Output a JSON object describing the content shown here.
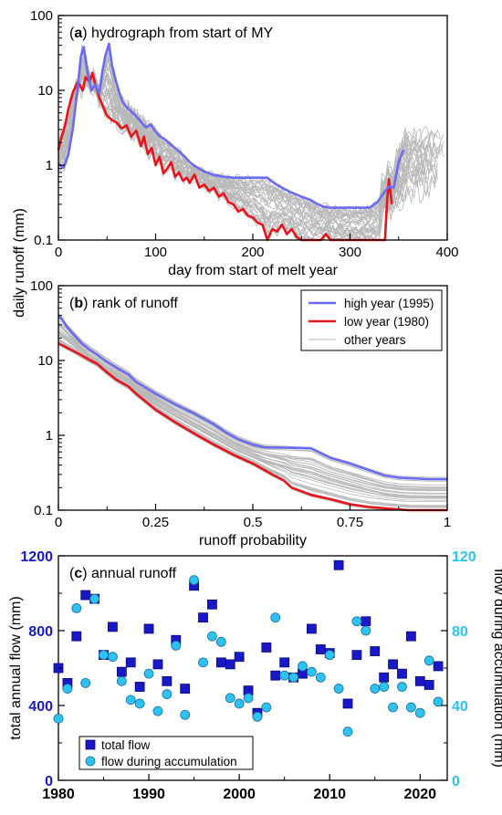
{
  "chart_data": [
    {
      "type": "line",
      "panel_letter": "a",
      "title": "hydrograph from start of MY",
      "xlabel": "day from start of melt year",
      "ylabel": "daily runoff (mm)",
      "xlim": [
        0,
        400
      ],
      "ylim": [
        0.1,
        100
      ],
      "yscale": "log",
      "xticks": [
        0,
        100,
        200,
        300,
        400
      ],
      "yticks": [
        0.1,
        1,
        10,
        100
      ],
      "series": [
        {
          "name": "high year (1995)",
          "color": "#6b6bf2",
          "points": [
            [
              0,
              1.05
            ],
            [
              5,
              0.92
            ],
            [
              10,
              1.35
            ],
            [
              15,
              3.2
            ],
            [
              18,
              7
            ],
            [
              20,
              11
            ],
            [
              23,
              28
            ],
            [
              26,
              38
            ],
            [
              30,
              17
            ],
            [
              34,
              10
            ],
            [
              38,
              12
            ],
            [
              42,
              9
            ],
            [
              45,
              17
            ],
            [
              48,
              28
            ],
            [
              52,
              42
            ],
            [
              55,
              22
            ],
            [
              58,
              15
            ],
            [
              62,
              10
            ],
            [
              66,
              7
            ],
            [
              70,
              6
            ],
            [
              75,
              5.2
            ],
            [
              80,
              4.5
            ],
            [
              85,
              3.8
            ],
            [
              90,
              3.2
            ],
            [
              95,
              3.5
            ],
            [
              100,
              2.8
            ],
            [
              105,
              2.4
            ],
            [
              110,
              2.2
            ],
            [
              115,
              1.9
            ],
            [
              120,
              1.7
            ],
            [
              125,
              1.5
            ],
            [
              130,
              1.3
            ],
            [
              135,
              1.1
            ],
            [
              140,
              0.98
            ],
            [
              145,
              0.9
            ],
            [
              150,
              0.82
            ],
            [
              155,
              0.78
            ],
            [
              160,
              0.74
            ],
            [
              170,
              0.7
            ],
            [
              180,
              0.68
            ],
            [
              200,
              0.68
            ],
            [
              215,
              0.68
            ],
            [
              220,
              0.6
            ],
            [
              230,
              0.5
            ],
            [
              240,
              0.43
            ],
            [
              250,
              0.38
            ],
            [
              260,
              0.34
            ],
            [
              265,
              0.31
            ],
            [
              272,
              0.28
            ],
            [
              280,
              0.27
            ],
            [
              300,
              0.27
            ],
            [
              320,
              0.27
            ],
            [
              328,
              0.32
            ],
            [
              335,
              0.43
            ],
            [
              340,
              0.52
            ],
            [
              345,
              0.5
            ],
            [
              350,
              1.1
            ],
            [
              355,
              1.6
            ]
          ]
        },
        {
          "name": "low year (1980)",
          "color": "#e8141c",
          "points": [
            [
              0,
              1.6
            ],
            [
              3,
              2.3
            ],
            [
              7,
              3.5
            ],
            [
              10,
              5.5
            ],
            [
              15,
              9.5
            ],
            [
              20,
              13
            ],
            [
              25,
              10
            ],
            [
              28,
              15
            ],
            [
              32,
              13
            ],
            [
              35,
              17
            ],
            [
              38,
              12
            ],
            [
              42,
              8
            ],
            [
              45,
              6.5
            ],
            [
              50,
              4.6
            ],
            [
              55,
              4
            ],
            [
              60,
              3.7
            ],
            [
              65,
              3.1
            ],
            [
              70,
              3.4
            ],
            [
              75,
              2.4
            ],
            [
              80,
              2.9
            ],
            [
              85,
              1.8
            ],
            [
              88,
              2.4
            ],
            [
              92,
              1.4
            ],
            [
              96,
              1.7
            ],
            [
              100,
              1
            ],
            [
              104,
              1.3
            ],
            [
              108,
              0.78
            ],
            [
              112,
              0.9
            ],
            [
              116,
              1.1
            ],
            [
              120,
              0.7
            ],
            [
              124,
              0.8
            ],
            [
              128,
              0.62
            ],
            [
              132,
              0.68
            ],
            [
              135,
              0.58
            ],
            [
              140,
              0.75
            ],
            [
              145,
              0.5
            ],
            [
              150,
              0.55
            ],
            [
              155,
              0.45
            ],
            [
              160,
              0.5
            ],
            [
              165,
              0.38
            ],
            [
              170,
              0.42
            ],
            [
              175,
              0.32
            ],
            [
              180,
              0.3
            ],
            [
              185,
              0.24
            ],
            [
              190,
              0.26
            ],
            [
              195,
              0.21
            ],
            [
              200,
              0.2
            ],
            [
              205,
              0.17
            ],
            [
              210,
              0.16
            ],
            [
              215,
              0.1
            ],
            [
              220,
              0.14
            ],
            [
              225,
              0.13
            ],
            [
              230,
              0.16
            ],
            [
              235,
              0.12
            ],
            [
              240,
              0.14
            ],
            [
              245,
              0.11
            ],
            [
              250,
              0.1
            ],
            [
              270,
              0.1
            ],
            [
              275,
              0.12
            ],
            [
              280,
              0.1
            ],
            [
              300,
              0.1
            ],
            [
              320,
              0.1
            ],
            [
              330,
              0.1
            ],
            [
              336,
              0.1
            ],
            [
              338,
              0.32
            ],
            [
              340,
              0.65
            ],
            [
              343,
              0.3
            ]
          ]
        },
        {
          "name": "other years",
          "color": "#b8b8b8"
        }
      ]
    },
    {
      "type": "line",
      "panel_letter": "b",
      "title": "rank of runoff",
      "xlabel": "runoff probability",
      "xlim": [
        0,
        1
      ],
      "ylim": [
        0.1,
        100
      ],
      "yscale": "log",
      "xticks": [
        0,
        0.25,
        0.5,
        0.75,
        1
      ],
      "xtick_labels": [
        "0",
        "0.25",
        "0.5",
        "0.75",
        "1"
      ],
      "yticks": [
        0.1,
        1,
        10,
        100
      ],
      "legend": {
        "placement": "top-right",
        "entries": [
          "high year (1995)",
          "low year (1980)",
          "other years"
        ]
      },
      "series": [
        {
          "name": "high year (1995)",
          "color": "#6b6bf2",
          "points": [
            [
              0,
              40
            ],
            [
              0.01,
              35
            ],
            [
              0.02,
              29
            ],
            [
              0.04,
              22
            ],
            [
              0.06,
              17
            ],
            [
              0.08,
              14
            ],
            [
              0.1,
              12
            ],
            [
              0.12,
              10
            ],
            [
              0.15,
              8
            ],
            [
              0.18,
              6.5
            ],
            [
              0.2,
              5.2
            ],
            [
              0.25,
              3.6
            ],
            [
              0.3,
              2.6
            ],
            [
              0.35,
              1.95
            ],
            [
              0.4,
              1.4
            ],
            [
              0.43,
              1.1
            ],
            [
              0.46,
              0.9
            ],
            [
              0.5,
              0.75
            ],
            [
              0.53,
              0.69
            ],
            [
              0.6,
              0.68
            ],
            [
              0.65,
              0.67
            ],
            [
              0.7,
              0.5
            ],
            [
              0.75,
              0.42
            ],
            [
              0.8,
              0.34
            ],
            [
              0.84,
              0.29
            ],
            [
              0.88,
              0.27
            ],
            [
              0.95,
              0.26
            ],
            [
              1,
              0.26
            ]
          ]
        },
        {
          "name": "low year (1980)",
          "color": "#e8141c",
          "points": [
            [
              0,
              17
            ],
            [
              0.02,
              15
            ],
            [
              0.05,
              12.5
            ],
            [
              0.08,
              10.2
            ],
            [
              0.1,
              9
            ],
            [
              0.12,
              7.3
            ],
            [
              0.15,
              5.5
            ],
            [
              0.18,
              4.5
            ],
            [
              0.2,
              3.6
            ],
            [
              0.25,
              2.2
            ],
            [
              0.3,
              1.5
            ],
            [
              0.35,
              1.05
            ],
            [
              0.4,
              0.75
            ],
            [
              0.45,
              0.55
            ],
            [
              0.5,
              0.42
            ],
            [
              0.55,
              0.3
            ],
            [
              0.58,
              0.25
            ],
            [
              0.6,
              0.2
            ],
            [
              0.65,
              0.16
            ],
            [
              0.7,
              0.14
            ],
            [
              0.75,
              0.12
            ],
            [
              0.8,
              0.11
            ],
            [
              0.85,
              0.105
            ],
            [
              0.9,
              0.1
            ],
            [
              1,
              0.1
            ]
          ]
        },
        {
          "name": "other years",
          "color": "#b8b8b8"
        }
      ]
    },
    {
      "type": "scatter",
      "panel_letter": "c",
      "title": "annual runoff",
      "xlabel": "",
      "ylabel": "total annual flow (mm)",
      "y2label": "flow during accumulation (mm)",
      "xlim": [
        1980,
        2023
      ],
      "ylim": [
        0,
        1200
      ],
      "y2lim": [
        0,
        120
      ],
      "xticks": [
        1980,
        1990,
        2000,
        2010,
        2020
      ],
      "yticks": [
        0,
        400,
        800,
        1200
      ],
      "y2ticks": [
        0,
        40,
        80,
        120
      ],
      "legend": {
        "placement": "bottom-left",
        "entries": [
          "total flow",
          "flow during accumulation"
        ]
      },
      "series": [
        {
          "name": "total flow",
          "color": "#1818c8",
          "x": [
            1980,
            1981,
            1982,
            1983,
            1984,
            1985,
            1986,
            1987,
            1988,
            1989,
            1990,
            1991,
            1992,
            1993,
            1994,
            1995,
            1996,
            1997,
            1998,
            1999,
            2000,
            2001,
            2002,
            2003,
            2004,
            2005,
            2006,
            2007,
            2008,
            2009,
            2010,
            2011,
            2012,
            2013,
            2014,
            2015,
            2016,
            2017,
            2018,
            2019,
            2020,
            2021,
            2022
          ],
          "values": [
            600,
            520,
            770,
            990,
            970,
            670,
            820,
            580,
            630,
            500,
            810,
            620,
            530,
            750,
            490,
            1040,
            870,
            940,
            630,
            620,
            660,
            480,
            360,
            710,
            560,
            630,
            550,
            570,
            810,
            700,
            680,
            1150,
            410,
            670,
            850,
            690,
            550,
            620,
            570,
            770,
            530,
            510,
            610
          ]
        },
        {
          "name": "flow during accumulation",
          "color": "#2ec2f2",
          "x": [
            1980,
            1981,
            1982,
            1983,
            1984,
            1985,
            1986,
            1987,
            1988,
            1989,
            1990,
            1991,
            1992,
            1993,
            1994,
            1995,
            1996,
            1997,
            1998,
            1999,
            2000,
            2001,
            2002,
            2003,
            2004,
            2005,
            2006,
            2007,
            2008,
            2009,
            2010,
            2011,
            2012,
            2013,
            2014,
            2015,
            2016,
            2017,
            2018,
            2019,
            2020,
            2021,
            2022
          ],
          "values": [
            33,
            49,
            92,
            52,
            97,
            67,
            66,
            53,
            43,
            41,
            57,
            37,
            46,
            72,
            35,
            107,
            63,
            77,
            74,
            44,
            41,
            44,
            34,
            39,
            87,
            56,
            55,
            61,
            58,
            55,
            67,
            49,
            26,
            85,
            80,
            49,
            50,
            39,
            50,
            39,
            36,
            64,
            42
          ]
        }
      ]
    }
  ]
}
